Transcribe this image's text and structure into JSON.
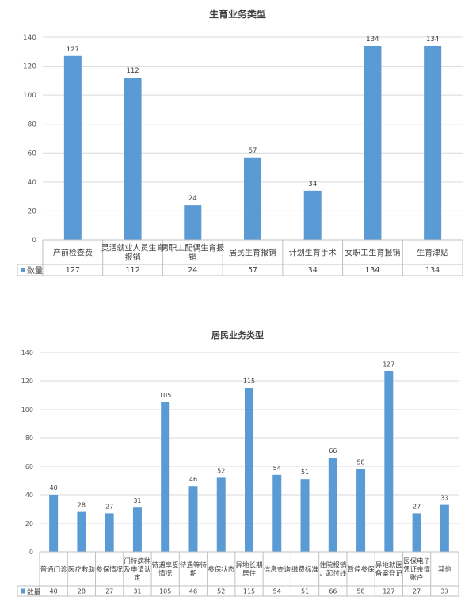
{
  "chart_data": [
    {
      "type": "bar",
      "title": "生育业务类型",
      "categories": [
        "产前检查费",
        "灵活就业人员生育报销",
        "男职工配偶生育报销",
        "居民生育报销",
        "计划生育手术",
        "女职工生育报销",
        "生育津贴"
      ],
      "series": [
        {
          "name": "数量",
          "values": [
            127,
            112,
            24,
            57,
            34,
            134,
            134
          ]
        }
      ],
      "ylim": [
        0,
        140
      ],
      "yticks": [
        0,
        20,
        40,
        60,
        80,
        100,
        120,
        140
      ],
      "grid": true,
      "legend": "data-table",
      "color": "#5b9bd5"
    },
    {
      "type": "bar",
      "title": "居民业务类型",
      "categories": [
        "普通门诊",
        "医疗救助",
        "参保情况",
        "门特病种及申请认定",
        "待遇享受情况",
        "待遇等待期",
        "参保状态",
        "异地长期居住",
        "信息查询",
        "缴费标准",
        "住院报销、起付线",
        "暂停参保",
        "异地就医备案登记",
        "医保电子凭证亲情账户",
        "其他"
      ],
      "series": [
        {
          "name": "数量",
          "values": [
            40,
            28,
            27,
            31,
            105,
            46,
            52,
            115,
            54,
            51,
            66,
            58,
            127,
            27,
            33
          ]
        }
      ],
      "ylim": [
        0,
        140
      ],
      "yticks": [
        0,
        20,
        40,
        60,
        80,
        100,
        120,
        140
      ],
      "grid": true,
      "legend": "data-table",
      "color": "#5b9bd5"
    }
  ]
}
